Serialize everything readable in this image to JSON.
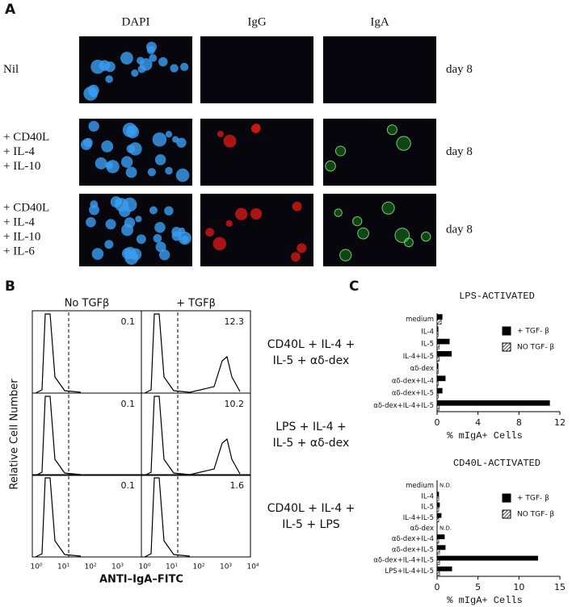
{
  "panel_a": {
    "label": "A",
    "columns": [
      "DAPI",
      "IgG",
      "IgA"
    ],
    "rows": [
      {
        "label": [
          "Nil"
        ],
        "day": "day 8"
      },
      {
        "label": [
          "+ CD40L",
          "+ IL-4",
          "+ IL-10"
        ],
        "day": "day 8"
      },
      {
        "label": [
          "+ CD40L",
          "+ IL-4",
          "+ IL-10",
          "+ IL-6"
        ],
        "day": "day 8"
      }
    ]
  },
  "panel_b": {
    "label": "B",
    "columns": [
      "No TGFβ",
      "+ TGFβ"
    ],
    "ylabel": "Relative Cell Number",
    "xlabel": "ANTI–IgA–FITC",
    "xtick_labels": [
      "10⁰",
      "10¹",
      "10²",
      "10³",
      "10⁰",
      "10¹",
      "10²",
      "10³",
      "10⁴"
    ],
    "rows": [
      {
        "condition": [
          "CD40L + IL-4 +",
          "IL-5 + αδ-dex"
        ],
        "no_tgf": "0.1",
        "tgf": "12.3"
      },
      {
        "condition": [
          "LPS + IL-4 +",
          "IL-5 + αδ-dex"
        ],
        "no_tgf": "0.1",
        "tgf": "10.2"
      },
      {
        "condition": [
          "CD40L + IL-4 +",
          "IL-5 + LPS"
        ],
        "no_tgf": "0.1",
        "tgf": "1.6"
      }
    ]
  },
  "panel_c_label": "C",
  "chart_data": [
    {
      "type": "bar",
      "orientation": "horizontal",
      "title": "LPS-ACTIVATED",
      "xlabel": "% mIgA+ Cells",
      "legend": "upper right",
      "categories": [
        "medium",
        "IL-4",
        "IL-5",
        "IL-4+IL-5",
        "αδ-dex",
        "αδ-dex+IL-4",
        "αδ-dex+IL-5",
        "αδ-dex+IL-4+IL-5"
      ],
      "series": [
        {
          "name": "+ TGF- β",
          "color": "#000000",
          "values": [
            0.5,
            0.1,
            1.2,
            1.4,
            0.1,
            0.8,
            0.5,
            11
          ]
        },
        {
          "name": "NO TGF- β",
          "color": "hatch",
          "values": [
            0.4,
            0.1,
            0.2,
            0.2,
            0.1,
            0.1,
            0.1,
            0.2
          ]
        }
      ],
      "xlim": [
        0,
        12
      ],
      "xticks": [
        0,
        4,
        8,
        12
      ]
    },
    {
      "type": "bar",
      "orientation": "horizontal",
      "title": "CD40L-ACTIVATED",
      "xlabel": "% mIgA+ Cells",
      "legend": "upper right",
      "categories": [
        "medium",
        "IL-4",
        "IL-5",
        "IL-4+IL-5",
        "αδ-dex",
        "αδ-dex+IL-4",
        "αδ-dex+IL-5",
        "αδ-dex+IL-4+IL-5",
        "LPS+IL-4+IL-5"
      ],
      "series": [
        {
          "name": "+ TGF- β",
          "color": "#000000",
          "values": [
            null,
            0.2,
            0.3,
            0.5,
            null,
            0.9,
            1.0,
            12.3,
            1.8
          ],
          "value_labels": [
            "N.D.",
            null,
            null,
            null,
            "N.D.",
            null,
            null,
            null,
            null
          ]
        },
        {
          "name": "NO TGF- β",
          "color": "hatch",
          "values": [
            null,
            0.2,
            0.2,
            0.2,
            null,
            0.2,
            0.3,
            0.3,
            0.3
          ]
        }
      ],
      "xlim": [
        0,
        15
      ],
      "xticks": [
        0,
        5,
        10,
        15
      ]
    }
  ]
}
